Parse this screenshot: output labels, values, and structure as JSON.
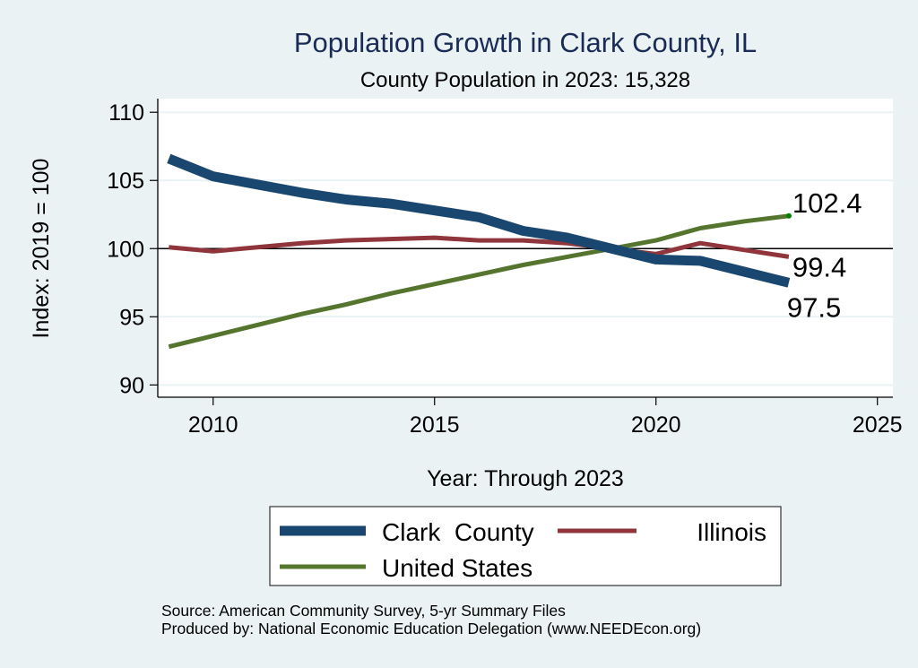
{
  "chart_data": {
    "type": "line",
    "title": "Population Growth in Clark County, IL",
    "subtitle": "County Population in 2023: 15,328",
    "xlabel": "Year: Through 2023",
    "ylabel": "Index: 2019 = 100",
    "xlim": [
      2008.75,
      2025.35
    ],
    "ylim": [
      89.1,
      111.0
    ],
    "xticks": [
      2010,
      2015,
      2020,
      2025
    ],
    "yticks": [
      90,
      95,
      100,
      105,
      110
    ],
    "grid": true,
    "reference_line": 100,
    "x": [
      2009,
      2010,
      2011,
      2012,
      2013,
      2014,
      2015,
      2016,
      2017,
      2018,
      2019,
      2020,
      2021,
      2022,
      2023
    ],
    "series": [
      {
        "name": "Clark  County",
        "color": "#1a476f",
        "width": "thick",
        "values": [
          106.6,
          105.3,
          104.7,
          104.1,
          103.6,
          103.3,
          102.8,
          102.3,
          101.3,
          100.8,
          100.0,
          99.2,
          99.1,
          98.3,
          97.5
        ],
        "end_label": "97.5"
      },
      {
        "name": "Illinois",
        "color": "#90353b",
        "width": "medium",
        "values": [
          100.1,
          99.8,
          100.1,
          100.4,
          100.6,
          100.7,
          100.8,
          100.6,
          100.6,
          100.4,
          100.0,
          99.6,
          100.4,
          99.9,
          99.4
        ],
        "end_label": "99.4"
      },
      {
        "name": "United States",
        "color": "#55752f",
        "width": "medium",
        "values": [
          92.8,
          93.6,
          94.4,
          95.2,
          95.9,
          96.7,
          97.4,
          98.1,
          98.8,
          99.4,
          100.0,
          100.6,
          101.5,
          102.0,
          102.4
        ],
        "end_label": "102.4",
        "end_marker_color": "#008000"
      }
    ],
    "legend": {
      "placement": "bottom",
      "entries": [
        "Clark  County",
        "Illinois",
        "United States"
      ]
    },
    "notes": [
      "Source: American Community Survey, 5-yr Summary Files",
      "Produced by: National Economic Education Delegation (www.NEEDEcon.org)"
    ]
  }
}
